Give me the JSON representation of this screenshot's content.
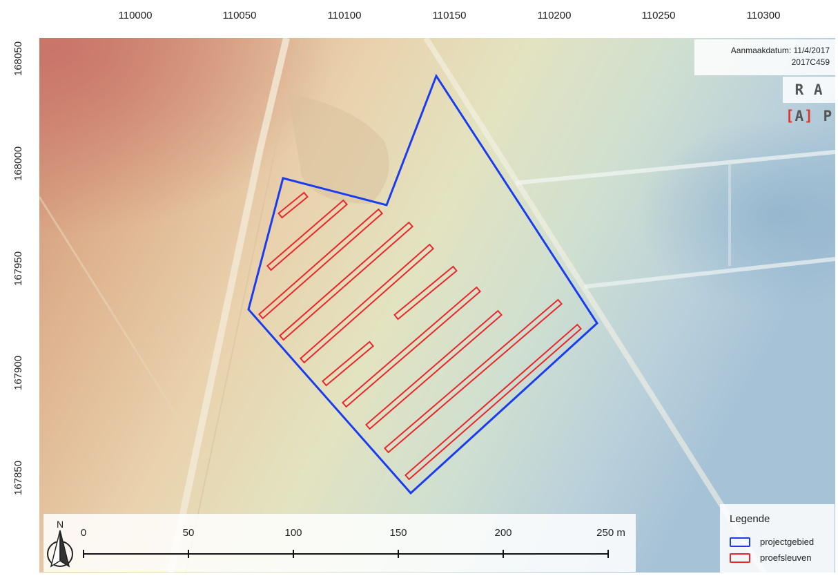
{
  "axes": {
    "x_ticks": [
      "110000",
      "110050",
      "110100",
      "110150",
      "110200",
      "110250",
      "110300"
    ],
    "y_ticks": [
      "168050",
      "168000",
      "167950",
      "167900",
      "167850"
    ]
  },
  "info": {
    "date_line": "Aanmaakdatum: 11/4/2017",
    "project_code": "2017C459",
    "logo_text": "RAAP"
  },
  "scalebar": {
    "labels": [
      "0",
      "50",
      "100",
      "150",
      "200",
      "250 m"
    ],
    "north_label": "N"
  },
  "legend": {
    "title": "Legende",
    "items": [
      {
        "label": "projectgebied",
        "color": "#1a3cf0"
      },
      {
        "label": "proefsleuven",
        "color": "#e8262b"
      }
    ]
  },
  "map": {
    "project_area": [
      [
        70,
        168
      ],
      [
        115,
        143
      ],
      [
        145,
        162
      ],
      [
        166,
        -4
      ],
      [
        225,
        112
      ],
      [
        132,
        240
      ],
      [
        77,
        167
      ]
    ],
    "trenches": [
      {
        "start": [
          75.5,
          168.4
        ],
        "end": [
          85.5,
          166.5
        ]
      },
      {
        "start": [
          65.5,
          167.5
        ],
        "end": [
          100,
          161.5
        ]
      },
      {
        "start": [
          68.5,
          167.2
        ],
        "end": [
          120,
          145
        ]
      },
      {
        "start": [
          93.5,
          166.5
        ],
        "end": [
          133,
          167
        ]
      },
      {
        "start": [
          114,
          167.4
        ],
        "end": [
          152.5,
          168.7
        ]
      },
      {
        "start": [
          124,
          167.9
        ],
        "end": [
          137.5,
          167.6
        ]
      },
      {
        "start": [
          137,
          167.5
        ],
        "end": [
          169.5,
          167.3
        ]
      },
      {
        "start": [
          149,
          167.9
        ],
        "end": [
          162.5,
          167.5
        ]
      },
      {
        "start": [
          161,
          167.2
        ],
        "end": [
          185.5,
          167.9
        ]
      },
      {
        "start": [
          171,
          167.2
        ],
        "end": [
          207.5,
          167.1
        ]
      },
      {
        "start": [
          180,
          168.4
        ],
        "end": [
          211,
          167.6
        ]
      },
      {
        "start": [
          96.6,
          168.7
        ],
        "end": [
          127,
          166.4
        ]
      }
    ]
  }
}
